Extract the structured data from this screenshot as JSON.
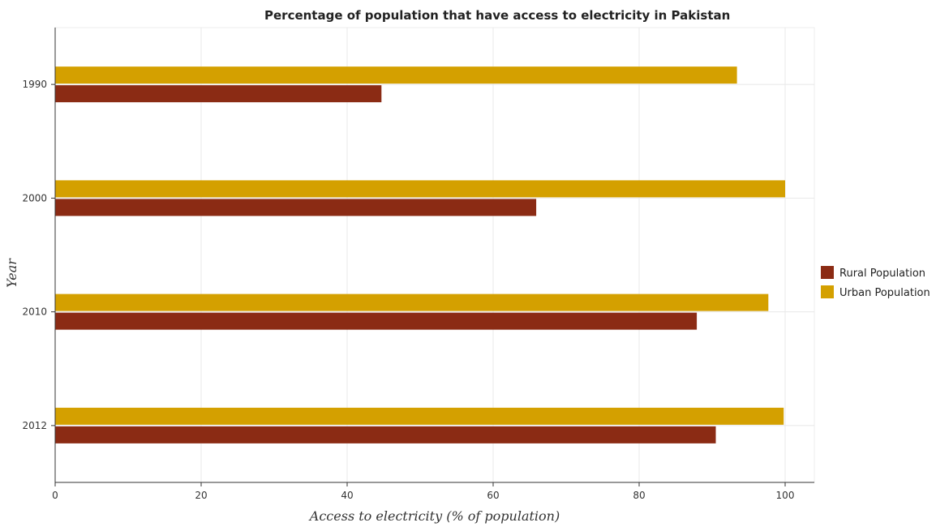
{
  "chart_data": {
    "type": "bar",
    "orientation": "horizontal",
    "title": "Percentage of population that have access to electricity in Pakistan",
    "xlabel": "Access to electricity (% of population)",
    "ylabel": "Year",
    "xlim": [
      0,
      104
    ],
    "xticks": [
      0,
      20,
      40,
      60,
      80,
      100
    ],
    "categories": [
      "1990",
      "2000",
      "2010",
      "2012"
    ],
    "series": [
      {
        "name": "Rural Population",
        "color": "#8b2b14",
        "values": [
          44.7,
          65.9,
          87.9,
          90.5
        ]
      },
      {
        "name": "Urban Population",
        "color": "#d4a000",
        "values": [
          93.4,
          100.0,
          97.7,
          99.8
        ]
      }
    ],
    "grid": true,
    "legend_position": "right"
  }
}
